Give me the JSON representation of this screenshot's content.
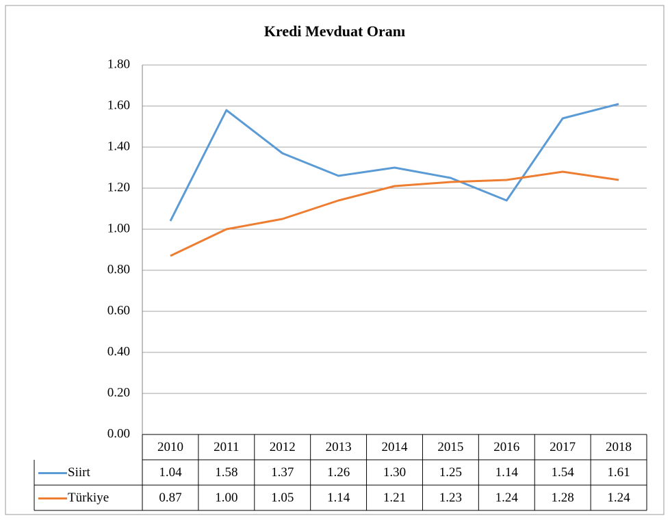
{
  "chart_data": {
    "type": "line",
    "title": "Kredi Mevduat Oranı",
    "categories": [
      "2010",
      "2011",
      "2012",
      "2013",
      "2014",
      "2015",
      "2016",
      "2017",
      "2018"
    ],
    "series": [
      {
        "name": "Siirt",
        "color": "#5b9bd5",
        "values": [
          1.04,
          1.58,
          1.37,
          1.26,
          1.3,
          1.25,
          1.14,
          1.54,
          1.61
        ],
        "value_labels": [
          "1.04",
          "1.58",
          "1.37",
          "1.26",
          "1.30",
          "1.25",
          "1.14",
          "1.54",
          "1.61"
        ]
      },
      {
        "name": "Türkiye",
        "color": "#ed7d31",
        "values": [
          0.87,
          1.0,
          1.05,
          1.14,
          1.21,
          1.23,
          1.24,
          1.28,
          1.24
        ],
        "value_labels": [
          "0.87",
          "1.00",
          "1.05",
          "1.14",
          "1.21",
          "1.23",
          "1.24",
          "1.28",
          "1.24"
        ]
      }
    ],
    "ylim": [
      0,
      1.8
    ],
    "yticks": [
      {
        "value": 0,
        "label": "0.00"
      },
      {
        "value": 0.2,
        "label": "0.20"
      },
      {
        "value": 0.4,
        "label": "0.40"
      },
      {
        "value": 0.6,
        "label": "0.60"
      },
      {
        "value": 0.8,
        "label": "0.80"
      },
      {
        "value": 1.0,
        "label": "1.00"
      },
      {
        "value": 1.2,
        "label": "1.20"
      },
      {
        "value": 1.4,
        "label": "1.40"
      },
      {
        "value": 1.6,
        "label": "1.60"
      },
      {
        "value": 1.8,
        "label": "1.80"
      }
    ],
    "grid": true,
    "legend": "table"
  }
}
